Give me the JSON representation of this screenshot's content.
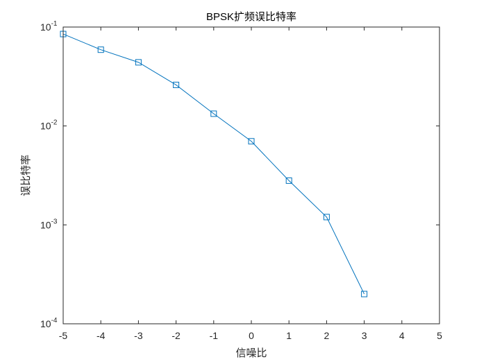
{
  "chart_data": {
    "type": "line",
    "title": "BPSK扩频误比特率",
    "xlabel": "信噪比",
    "ylabel": "误比特率",
    "xlim": [
      -5,
      5
    ],
    "ylim": [
      0.0001,
      0.1
    ],
    "yscale": "log",
    "grid": false,
    "xticks": [
      -5,
      -4,
      -3,
      -2,
      -1,
      0,
      1,
      2,
      3,
      4,
      5
    ],
    "yticks": [
      {
        "base": "10",
        "exp": "-4",
        "value": 0.0001
      },
      {
        "base": "10",
        "exp": "-3",
        "value": 0.001
      },
      {
        "base": "10",
        "exp": "-2",
        "value": 0.01
      },
      {
        "base": "10",
        "exp": "-1",
        "value": 0.1
      }
    ],
    "series": [
      {
        "color": "#0072BD",
        "marker": "square",
        "x": [
          -5,
          -4,
          -3,
          -2,
          -1,
          0,
          1,
          2,
          3
        ],
        "y": [
          0.085,
          0.059,
          0.044,
          0.026,
          0.0133,
          0.007,
          0.0028,
          0.0012,
          0.0002
        ]
      }
    ]
  }
}
